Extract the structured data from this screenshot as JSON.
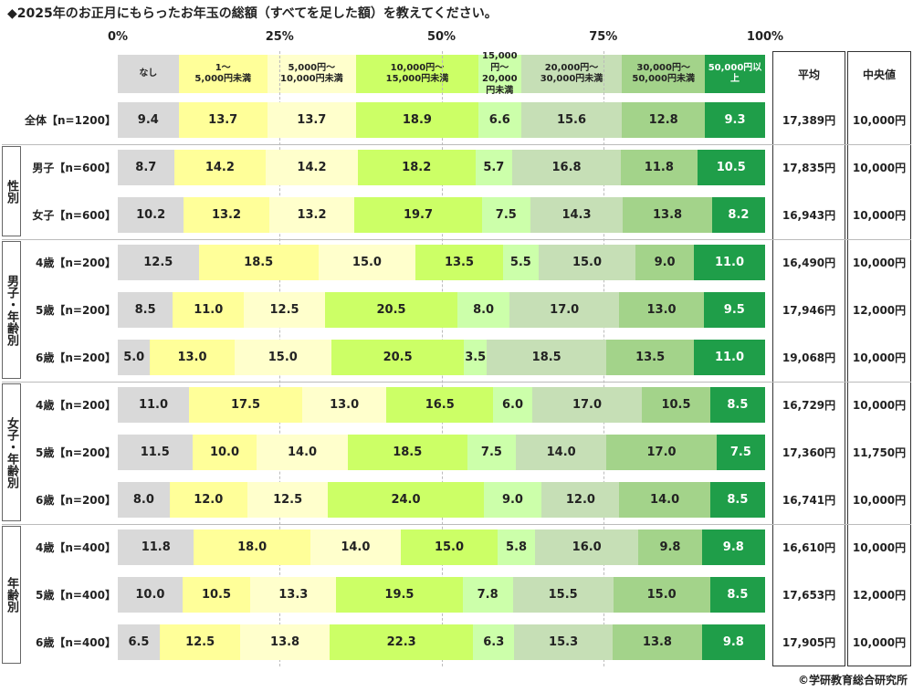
{
  "title": "◆2025年のお正月にもらったお年玉の総額（すべてを足した額）を教えてください。",
  "footer": "©学研教育総合研究所",
  "chart_data": {
    "type": "bar",
    "orientation": "horizontal",
    "stacked": "100%",
    "axis_ticks": [
      "0%",
      "25%",
      "50%",
      "75%",
      "100%"
    ],
    "categories": [
      "なし",
      "1～\n5,000円未満",
      "5,000円～\n10,000円未満",
      "10,000円～\n15,000円未満",
      "15,000円～\n20,000円未満",
      "20,000円～\n30,000円未満",
      "30,000円～\n50,000円未満",
      "50,000円以上"
    ],
    "colors": [
      "#d9d9d9",
      "#ffff99",
      "#ffffcc",
      "#ccff66",
      "#ccffaa",
      "#c6dfb6",
      "#a3d38a",
      "#1f9e49"
    ],
    "stat_headers": [
      "平均",
      "中央値"
    ],
    "groups": [
      {
        "label": "性別",
        "rows": [
          1,
          2
        ]
      },
      {
        "label": "男子・年齢別",
        "rows": [
          3,
          4,
          5
        ]
      },
      {
        "label": "女子・年齢別",
        "rows": [
          6,
          7,
          8
        ]
      },
      {
        "label": "年齢別",
        "rows": [
          9,
          10,
          11
        ]
      }
    ],
    "rows": [
      {
        "label": "全体【n=1200】",
        "values": [
          "9.4",
          "13.7",
          "13.7",
          "18.9",
          "6.6",
          "15.6",
          "12.8",
          "9.3"
        ],
        "mean": "17,389円",
        "median": "10,000円"
      },
      {
        "label": "男子【n=600】",
        "values": [
          "8.7",
          "14.2",
          "14.2",
          "18.2",
          "5.7",
          "16.8",
          "11.8",
          "10.5"
        ],
        "mean": "17,835円",
        "median": "10,000円"
      },
      {
        "label": "女子【n=600】",
        "values": [
          "10.2",
          "13.2",
          "13.2",
          "19.7",
          "7.5",
          "14.3",
          "13.8",
          "8.2"
        ],
        "mean": "16,943円",
        "median": "10,000円"
      },
      {
        "label": "4歳【n=200】",
        "values": [
          "12.5",
          "18.5",
          "15.0",
          "13.5",
          "5.5",
          "15.0",
          "9.0",
          "11.0"
        ],
        "mean": "16,490円",
        "median": "10,000円"
      },
      {
        "label": "5歳【n=200】",
        "values": [
          "8.5",
          "11.0",
          "12.5",
          "20.5",
          "8.0",
          "17.0",
          "13.0",
          "9.5"
        ],
        "mean": "17,946円",
        "median": "12,000円"
      },
      {
        "label": "6歳【n=200】",
        "values": [
          "5.0",
          "13.0",
          "15.0",
          "20.5",
          "3.5",
          "18.5",
          "13.5",
          "11.0"
        ],
        "mean": "19,068円",
        "median": "10,000円"
      },
      {
        "label": "4歳【n=200】",
        "values": [
          "11.0",
          "17.5",
          "13.0",
          "16.5",
          "6.0",
          "17.0",
          "10.5",
          "8.5"
        ],
        "mean": "16,729円",
        "median": "10,000円"
      },
      {
        "label": "5歳【n=200】",
        "values": [
          "11.5",
          "10.0",
          "14.0",
          "18.5",
          "7.5",
          "14.0",
          "17.0",
          "7.5"
        ],
        "mean": "17,360円",
        "median": "11,750円"
      },
      {
        "label": "6歳【n=200】",
        "values": [
          "8.0",
          "12.0",
          "12.5",
          "24.0",
          "9.0",
          "12.0",
          "14.0",
          "8.5"
        ],
        "mean": "16,741円",
        "median": "10,000円"
      },
      {
        "label": "4歳【n=400】",
        "values": [
          "11.8",
          "18.0",
          "14.0",
          "15.0",
          "5.8",
          "16.0",
          "9.8",
          "9.8"
        ],
        "mean": "16,610円",
        "median": "10,000円"
      },
      {
        "label": "5歳【n=400】",
        "values": [
          "10.0",
          "10.5",
          "13.3",
          "19.5",
          "7.8",
          "15.5",
          "15.0",
          "8.5"
        ],
        "mean": "17,653円",
        "median": "12,000円"
      },
      {
        "label": "6歳【n=400】",
        "values": [
          "6.5",
          "12.5",
          "13.8",
          "22.3",
          "6.3",
          "15.3",
          "13.8",
          "9.8"
        ],
        "mean": "17,905円",
        "median": "10,000円"
      }
    ]
  }
}
